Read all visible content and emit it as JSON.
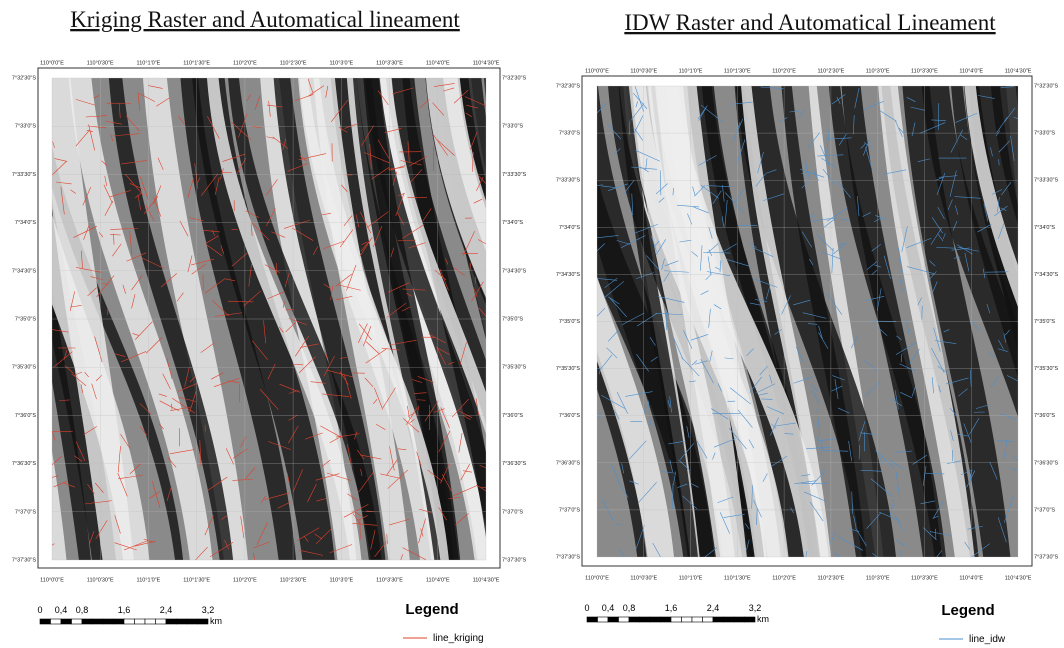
{
  "panels": [
    {
      "title": "Kriging Raster and Automatical lineament",
      "lon_ticks": [
        "110°0'0\"E",
        "110°0'30\"E",
        "110°1'0\"E",
        "110°1'30\"E",
        "110°2'0\"E",
        "110°2'30\"E",
        "110°3'0\"E",
        "110°3'30\"E",
        "110°4'0\"E",
        "110°4'30\"E"
      ],
      "lat_ticks": [
        "7°32'30\"S",
        "7°33'0\"S",
        "7°33'30\"S",
        "7°34'0\"S",
        "7°34'30\"S",
        "7°35'0\"S",
        "7°35'30\"S",
        "7°36'0\"S",
        "7°36'30\"S",
        "7°37'0\"S",
        "7°37'30\"S"
      ],
      "scale": {
        "labels": [
          "0",
          "0,4",
          "0,8",
          "1,6",
          "2,4",
          "3,2"
        ],
        "unit": "km"
      },
      "legend": {
        "title": "Legend",
        "label": "line_kriging",
        "color": "#e0402a"
      }
    },
    {
      "title": "IDW Raster and Automatical Lineament",
      "lon_ticks": [
        "110°0'0\"E",
        "110°0'30\"E",
        "110°1'0\"E",
        "110°1'30\"E",
        "110°2'0\"E",
        "110°2'30\"E",
        "110°3'0\"E",
        "110°3'30\"E",
        "110°4'0\"E",
        "110°4'30\"E"
      ],
      "lat_ticks": [
        "7°32'30\"S",
        "7°33'0\"S",
        "7°33'30\"S",
        "7°34'0\"S",
        "7°34'30\"S",
        "7°35'0\"S",
        "7°35'30\"S",
        "7°36'0\"S",
        "7°36'30\"S",
        "7°37'0\"S",
        "7°37'30\"S"
      ],
      "scale": {
        "labels": [
          "0",
          "0,4",
          "0,8",
          "1,6",
          "2,4",
          "3,2"
        ],
        "unit": "km"
      },
      "legend": {
        "title": "Legend",
        "label": "line_idw",
        "color": "#4a90d0"
      }
    }
  ]
}
